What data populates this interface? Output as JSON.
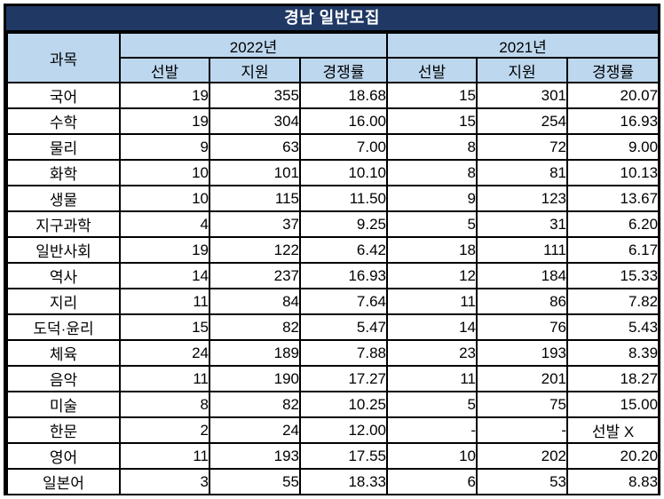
{
  "title": "경남 일반모집",
  "colors": {
    "title_bg": "#1F3864",
    "title_text": "#FFFFFF",
    "header_bg": "#BDD7EE",
    "border": "#000000",
    "cell_bg": "#FFFFFF",
    "cell_text": "#000000"
  },
  "table": {
    "corner_header": "과목",
    "year_groups": [
      {
        "label": "2022년",
        "columns": [
          "선발",
          "지원",
          "경쟁률"
        ]
      },
      {
        "label": "2021년",
        "columns": [
          "선발",
          "지원",
          "경쟁률"
        ]
      }
    ],
    "rows": [
      {
        "subject": "국어",
        "values": [
          "19",
          "355",
          "18.68",
          "15",
          "301",
          "20.07"
        ]
      },
      {
        "subject": "수학",
        "values": [
          "19",
          "304",
          "16.00",
          "15",
          "254",
          "16.93"
        ]
      },
      {
        "subject": "물리",
        "values": [
          "9",
          "63",
          "7.00",
          "8",
          "72",
          "9.00"
        ]
      },
      {
        "subject": "화학",
        "values": [
          "10",
          "101",
          "10.10",
          "8",
          "81",
          "10.13"
        ]
      },
      {
        "subject": "생물",
        "values": [
          "10",
          "115",
          "11.50",
          "9",
          "123",
          "13.67"
        ]
      },
      {
        "subject": "지구과학",
        "values": [
          "4",
          "37",
          "9.25",
          "5",
          "31",
          "6.20"
        ]
      },
      {
        "subject": "일반사회",
        "values": [
          "19",
          "122",
          "6.42",
          "18",
          "111",
          "6.17"
        ]
      },
      {
        "subject": "역사",
        "values": [
          "14",
          "237",
          "16.93",
          "12",
          "184",
          "15.33"
        ]
      },
      {
        "subject": "지리",
        "values": [
          "11",
          "84",
          "7.64",
          "11",
          "86",
          "7.82"
        ]
      },
      {
        "subject": "도덕·윤리",
        "values": [
          "15",
          "82",
          "5.47",
          "14",
          "76",
          "5.43"
        ]
      },
      {
        "subject": "체육",
        "values": [
          "24",
          "189",
          "7.88",
          "23",
          "193",
          "8.39"
        ]
      },
      {
        "subject": "음악",
        "values": [
          "11",
          "190",
          "17.27",
          "11",
          "201",
          "18.27"
        ]
      },
      {
        "subject": "미술",
        "values": [
          "8",
          "82",
          "10.25",
          "5",
          "75",
          "15.00"
        ]
      },
      {
        "subject": "한문",
        "values": [
          "2",
          "24",
          "12.00",
          "-",
          "-",
          "선발 X"
        ]
      },
      {
        "subject": "영어",
        "values": [
          "11",
          "193",
          "17.55",
          "10",
          "202",
          "20.20"
        ]
      },
      {
        "subject": "일본어",
        "values": [
          "3",
          "55",
          "18.33",
          "6",
          "53",
          "8.83"
        ]
      }
    ]
  },
  "chart_data": {
    "type": "table",
    "title": "경남 일반모집",
    "categories": [
      "국어",
      "수학",
      "물리",
      "화학",
      "생물",
      "지구과학",
      "일반사회",
      "역사",
      "지리",
      "도덕·윤리",
      "체육",
      "음악",
      "미술",
      "한문",
      "영어",
      "일본어"
    ],
    "series": [
      {
        "name": "2022년 선발",
        "values": [
          19,
          19,
          9,
          10,
          10,
          4,
          19,
          14,
          11,
          15,
          24,
          11,
          8,
          2,
          11,
          3
        ]
      },
      {
        "name": "2022년 지원",
        "values": [
          355,
          304,
          63,
          101,
          115,
          37,
          122,
          237,
          84,
          82,
          189,
          190,
          82,
          24,
          193,
          55
        ]
      },
      {
        "name": "2022년 경쟁률",
        "values": [
          18.68,
          16.0,
          7.0,
          10.1,
          11.5,
          9.25,
          6.42,
          16.93,
          7.64,
          5.47,
          7.88,
          17.27,
          10.25,
          12.0,
          17.55,
          18.33
        ]
      },
      {
        "name": "2021년 선발",
        "values": [
          15,
          15,
          8,
          8,
          9,
          5,
          18,
          12,
          11,
          14,
          23,
          11,
          5,
          null,
          10,
          6
        ]
      },
      {
        "name": "2021년 지원",
        "values": [
          301,
          254,
          72,
          81,
          123,
          31,
          111,
          184,
          86,
          76,
          193,
          201,
          75,
          null,
          202,
          53
        ]
      },
      {
        "name": "2021년 경쟁률",
        "values": [
          20.07,
          16.93,
          9.0,
          10.13,
          13.67,
          6.2,
          6.17,
          15.33,
          7.82,
          5.43,
          8.39,
          18.27,
          15.0,
          "선발 X",
          20.2,
          8.83
        ]
      }
    ]
  }
}
